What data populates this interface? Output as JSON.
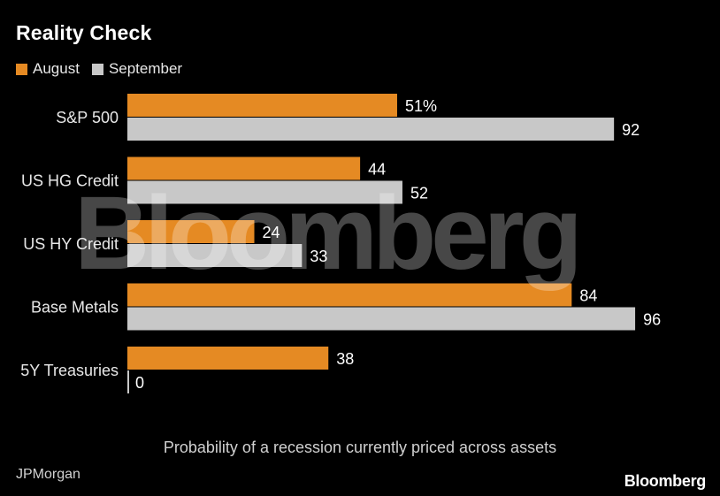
{
  "title": "Reality Check",
  "legend": [
    {
      "label": "August",
      "color": "#e58a23"
    },
    {
      "label": "September",
      "color": "#c8c8c8"
    }
  ],
  "footnote": "Probability of a recession currently priced across assets",
  "source": "JPMorgan",
  "brand": "Bloomberg",
  "watermark": "Bloomberg",
  "chart_data": {
    "type": "bar",
    "orientation": "horizontal",
    "title": "Reality Check",
    "categories": [
      "S&P 500",
      "US HG Credit",
      "US HY Credit",
      "Base Metals",
      "5Y Treasuries"
    ],
    "series": [
      {
        "name": "August",
        "color": "#e58a23",
        "values": [
          51,
          44,
          24,
          84,
          38
        ],
        "labels": [
          "51%",
          "44",
          "24",
          "84",
          "38"
        ]
      },
      {
        "name": "September",
        "color": "#c8c8c8",
        "values": [
          92,
          52,
          33,
          96,
          0
        ],
        "labels": [
          "92",
          "52",
          "33",
          "96",
          "0"
        ]
      }
    ],
    "xlim": [
      0,
      100
    ],
    "grid": false,
    "legend_position": "top-left"
  }
}
